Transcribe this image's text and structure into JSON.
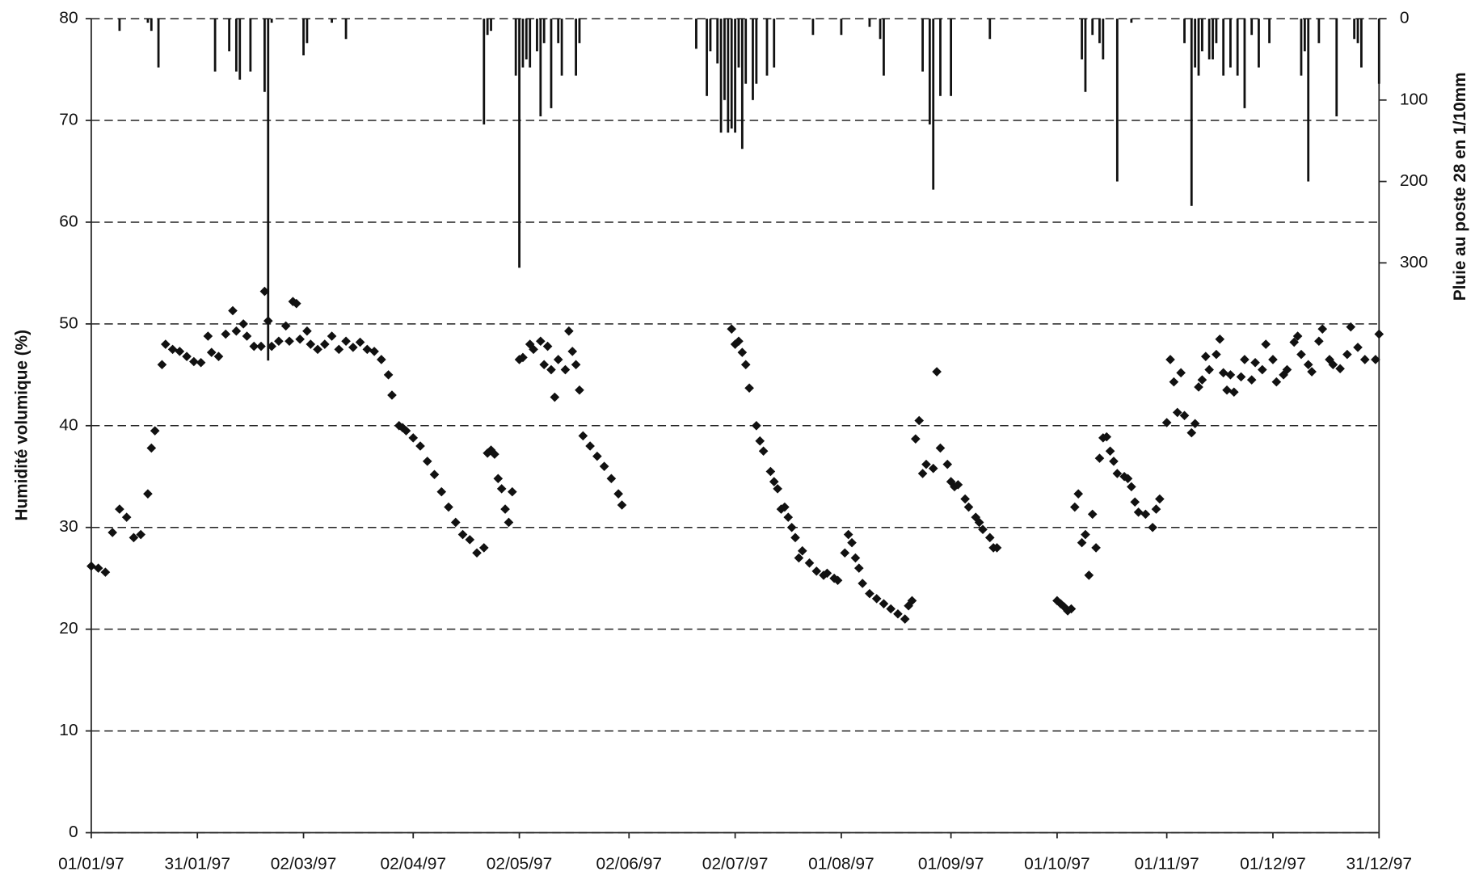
{
  "chart_data": {
    "type": "combo",
    "y_label": "Humidité volumique (%)",
    "y2_label": "Pluie au poste 28 en 1/10mm",
    "xlim": [
      "1997-01-01",
      "1997-12-31"
    ],
    "xticks": [
      {
        "value": "1997-01-01",
        "label": "01/01/97"
      },
      {
        "value": "1997-01-31",
        "label": "31/01/97"
      },
      {
        "value": "1997-03-02",
        "label": "02/03/97"
      },
      {
        "value": "1997-04-02",
        "label": "02/04/97"
      },
      {
        "value": "1997-05-02",
        "label": "02/05/97"
      },
      {
        "value": "1997-06-02",
        "label": "02/06/97"
      },
      {
        "value": "1997-07-02",
        "label": "02/07/97"
      },
      {
        "value": "1997-08-01",
        "label": "01/08/97"
      },
      {
        "value": "1997-09-01",
        "label": "01/09/97"
      },
      {
        "value": "1997-10-01",
        "label": "01/10/97"
      },
      {
        "value": "1997-11-01",
        "label": "01/11/97"
      },
      {
        "value": "1997-12-01",
        "label": "01/12/97"
      },
      {
        "value": "1997-12-31",
        "label": "31/12/97"
      }
    ],
    "ylim": [
      0,
      80
    ],
    "yticks": [
      0,
      10,
      20,
      30,
      40,
      50,
      60,
      70,
      80
    ],
    "y2lim": [
      1000,
      0
    ],
    "y2ticks": [
      0,
      100,
      200,
      300
    ],
    "grid": true,
    "series": [
      {
        "type": "scatter",
        "color": "#111111",
        "x": [
          "1997-01-01",
          "1997-01-03",
          "1997-01-05",
          "1997-01-07",
          "1997-01-09",
          "1997-01-11",
          "1997-01-13",
          "1997-01-15",
          "1997-01-17",
          "1997-01-18",
          "1997-01-19",
          "1997-01-21",
          "1997-01-22",
          "1997-01-24",
          "1997-01-26",
          "1997-01-28",
          "1997-01-30",
          "1997-02-01",
          "1997-02-03",
          "1997-02-04",
          "1997-02-06",
          "1997-02-08",
          "1997-02-10",
          "1997-02-11",
          "1997-02-13",
          "1997-02-14",
          "1997-02-16",
          "1997-02-18",
          "1997-02-19",
          "1997-02-20",
          "1997-02-21",
          "1997-02-23",
          "1997-02-25",
          "1997-02-26",
          "1997-02-27",
          "1997-02-28",
          "1997-03-01",
          "1997-03-03",
          "1997-03-04",
          "1997-03-06",
          "1997-03-08",
          "1997-03-10",
          "1997-03-12",
          "1997-03-14",
          "1997-03-16",
          "1997-03-18",
          "1997-03-20",
          "1997-03-22",
          "1997-03-24",
          "1997-03-26",
          "1997-03-27",
          "1997-03-29",
          "1997-03-30",
          "1997-03-31",
          "1997-04-02",
          "1997-04-04",
          "1997-04-06",
          "1997-04-08",
          "1997-04-10",
          "1997-04-12",
          "1997-04-14",
          "1997-04-16",
          "1997-04-18",
          "1997-04-20",
          "1997-04-22",
          "1997-04-23",
          "1997-04-24",
          "1997-04-25",
          "1997-04-26",
          "1997-04-27",
          "1997-04-28",
          "1997-04-29",
          "1997-04-30",
          "1997-05-02",
          "1997-05-03",
          "1997-05-05",
          "1997-05-06",
          "1997-05-08",
          "1997-05-09",
          "1997-05-10",
          "1997-05-11",
          "1997-05-12",
          "1997-05-13",
          "1997-05-15",
          "1997-05-16",
          "1997-05-17",
          "1997-05-18",
          "1997-05-19",
          "1997-05-20",
          "1997-05-22",
          "1997-05-24",
          "1997-05-26",
          "1997-05-28",
          "1997-05-30",
          "1997-05-31",
          "1997-07-01",
          "1997-07-02",
          "1997-07-03",
          "1997-07-04",
          "1997-07-05",
          "1997-07-06",
          "1997-07-08",
          "1997-07-09",
          "1997-07-10",
          "1997-07-12",
          "1997-07-13",
          "1997-07-14",
          "1997-07-15",
          "1997-07-16",
          "1997-07-17",
          "1997-07-18",
          "1997-07-19",
          "1997-07-20",
          "1997-07-21",
          "1997-07-23",
          "1997-07-25",
          "1997-07-27",
          "1997-07-28",
          "1997-07-30",
          "1997-07-31",
          "1997-08-02",
          "1997-08-03",
          "1997-08-04",
          "1997-08-05",
          "1997-08-06",
          "1997-08-07",
          "1997-08-09",
          "1997-08-11",
          "1997-08-13",
          "1997-08-15",
          "1997-08-17",
          "1997-08-19",
          "1997-08-20",
          "1997-08-21",
          "1997-08-22",
          "1997-08-23",
          "1997-08-24",
          "1997-08-25",
          "1997-08-27",
          "1997-08-28",
          "1997-08-29",
          "1997-08-31",
          "1997-09-01",
          "1997-09-02",
          "1997-09-03",
          "1997-09-05",
          "1997-09-06",
          "1997-09-08",
          "1997-09-09",
          "1997-09-10",
          "1997-09-12",
          "1997-09-13",
          "1997-09-14",
          "1997-10-01",
          "1997-10-02",
          "1997-10-03",
          "1997-10-04",
          "1997-10-05",
          "1997-10-06",
          "1997-10-07",
          "1997-10-08",
          "1997-10-09",
          "1997-10-10",
          "1997-10-11",
          "1997-10-12",
          "1997-10-13",
          "1997-10-14",
          "1997-10-15",
          "1997-10-16",
          "1997-10-17",
          "1997-10-18",
          "1997-10-20",
          "1997-10-21",
          "1997-10-22",
          "1997-10-23",
          "1997-10-24",
          "1997-10-26",
          "1997-10-28",
          "1997-10-29",
          "1997-10-30",
          "1997-11-01",
          "1997-11-02",
          "1997-11-03",
          "1997-11-04",
          "1997-11-05",
          "1997-11-06",
          "1997-11-08",
          "1997-11-09",
          "1997-11-10",
          "1997-11-11",
          "1997-11-12",
          "1997-11-13",
          "1997-11-15",
          "1997-11-16",
          "1997-11-17",
          "1997-11-18",
          "1997-11-19",
          "1997-11-20",
          "1997-11-22",
          "1997-11-23",
          "1997-11-25",
          "1997-11-26",
          "1997-11-28",
          "1997-11-29",
          "1997-12-01",
          "1997-12-02",
          "1997-12-04",
          "1997-12-05",
          "1997-12-07",
          "1997-12-08",
          "1997-12-09",
          "1997-12-11",
          "1997-12-12",
          "1997-12-14",
          "1997-12-15",
          "1997-12-17",
          "1997-12-18",
          "1997-12-20",
          "1997-12-22",
          "1997-12-23",
          "1997-12-25",
          "1997-12-27",
          "1997-12-30",
          "1997-12-31"
        ],
        "values": [
          26.2,
          26,
          25.6,
          29.5,
          31.8,
          31,
          29,
          29.3,
          33.3,
          37.8,
          39.5,
          46,
          48,
          47.5,
          47.3,
          46.8,
          46.3,
          46.2,
          48.8,
          47.2,
          46.8,
          49,
          51.3,
          49.3,
          50,
          48.8,
          47.8,
          47.8,
          53.2,
          50.3,
          47.8,
          48.3,
          49.8,
          48.3,
          52.2,
          52,
          48.5,
          49.3,
          48,
          47.5,
          48,
          48.8,
          47.5,
          48.3,
          47.7,
          48.2,
          47.5,
          47.3,
          46.5,
          45,
          43,
          40,
          39.8,
          39.5,
          38.8,
          38,
          36.5,
          35.2,
          33.5,
          32,
          30.5,
          29.3,
          28.8,
          27.5,
          28,
          37.3,
          37.6,
          37.2,
          34.8,
          33.8,
          31.8,
          30.5,
          33.5,
          46.5,
          46.7,
          48,
          47.5,
          48.3,
          46,
          47.8,
          45.5,
          42.8,
          46.5,
          45.5,
          49.3,
          47.3,
          46,
          43.5,
          39,
          38,
          37,
          36,
          34.8,
          33.3,
          32.2,
          49.5,
          48,
          48.3,
          47.2,
          46,
          43.7,
          40,
          38.5,
          37.5,
          35.5,
          34.5,
          33.8,
          31.8,
          32,
          31,
          30,
          29,
          27,
          27.7,
          26.5,
          25.7,
          25.3,
          25.5,
          25,
          24.8,
          27.5,
          29.3,
          28.5,
          27,
          26,
          24.5,
          23.5,
          23,
          22.5,
          22,
          21.5,
          21,
          22.3,
          22.8,
          38.7,
          40.5,
          35.3,
          36.2,
          35.8,
          45.3,
          37.8,
          36.2,
          34.5,
          34,
          34.2,
          32.8,
          32,
          31,
          30.5,
          29.8,
          29,
          28,
          28,
          22.8,
          22.5,
          22.2,
          21.8,
          22,
          32,
          33.3,
          28.5,
          29.3,
          25.3,
          31.3,
          28,
          36.8,
          38.8,
          38.9,
          37.5,
          36.5,
          35.3,
          35,
          34.8,
          34,
          32.5,
          31.5,
          31.3,
          30,
          31.8,
          32.8,
          40.3,
          46.5,
          44.3,
          41.3,
          45.2,
          41,
          39.3,
          40.2,
          43.8,
          44.5,
          46.8,
          45.5,
          47,
          48.5,
          45.2,
          43.5,
          45,
          43.3,
          44.8,
          46.5,
          44.5,
          46.2,
          45.5,
          48,
          46.5,
          44.3,
          45,
          45.5,
          48.2,
          48.8,
          47,
          46,
          45.3,
          48.3,
          49.5,
          46.5,
          46,
          45.6,
          47,
          49.7,
          47.7,
          46.5,
          46.5,
          49
        ]
      },
      {
        "type": "bar",
        "axis": "y2",
        "color": "#111111",
        "x": [
          "1997-01-09",
          "1997-01-17",
          "1997-01-18",
          "1997-01-20",
          "1997-02-05",
          "1997-02-09",
          "1997-02-11",
          "1997-02-12",
          "1997-02-15",
          "1997-02-19",
          "1997-02-20",
          "1997-02-21",
          "1997-03-02",
          "1997-03-03",
          "1997-03-10",
          "1997-03-14",
          "1997-04-22",
          "1997-04-23",
          "1997-04-24",
          "1997-05-01",
          "1997-05-02",
          "1997-05-03",
          "1997-05-04",
          "1997-05-05",
          "1997-05-07",
          "1997-05-08",
          "1997-05-09",
          "1997-05-11",
          "1997-05-13",
          "1997-05-14",
          "1997-05-18",
          "1997-05-19",
          "1997-06-21",
          "1997-06-24",
          "1997-06-25",
          "1997-06-27",
          "1997-06-28",
          "1997-06-29",
          "1997-06-30",
          "1997-07-01",
          "1997-07-02",
          "1997-07-03",
          "1997-07-04",
          "1997-07-05",
          "1997-07-07",
          "1997-07-08",
          "1997-07-11",
          "1997-07-13",
          "1997-07-24",
          "1997-08-01",
          "1997-08-09",
          "1997-08-12",
          "1997-08-13",
          "1997-08-24",
          "1997-08-26",
          "1997-08-27",
          "1997-08-29",
          "1997-09-01",
          "1997-09-12",
          "1997-10-08",
          "1997-10-09",
          "1997-10-11",
          "1997-10-13",
          "1997-10-14",
          "1997-10-18",
          "1997-10-22",
          "1997-11-06",
          "1997-11-08",
          "1997-11-09",
          "1997-11-10",
          "1997-11-11",
          "1997-11-13",
          "1997-11-14",
          "1997-11-15",
          "1997-11-17",
          "1997-11-19",
          "1997-11-21",
          "1997-11-23",
          "1997-11-25",
          "1997-11-27",
          "1997-11-30",
          "1997-12-09",
          "1997-12-10",
          "1997-12-11",
          "1997-12-14",
          "1997-12-19",
          "1997-12-24",
          "1997-12-25",
          "1997-12-26",
          "1997-12-31"
        ],
        "values": [
          15,
          5,
          15,
          60,
          65,
          40,
          65,
          75,
          65,
          90,
          420,
          5,
          45,
          30,
          5,
          25,
          130,
          20,
          15,
          70,
          306,
          60,
          50,
          60,
          40,
          120,
          30,
          110,
          30,
          70,
          70,
          30,
          37,
          95,
          40,
          55,
          140,
          100,
          140,
          135,
          140,
          60,
          160,
          80,
          100,
          80,
          70,
          60,
          20,
          20,
          10,
          25,
          70,
          65,
          130,
          210,
          95,
          95,
          25,
          50,
          90,
          20,
          30,
          50,
          200,
          5,
          30,
          230,
          60,
          70,
          40,
          50,
          50,
          30,
          70,
          60,
          70,
          110,
          20,
          60,
          30,
          70,
          40,
          200,
          30,
          120,
          25,
          30,
          60,
          80
        ]
      }
    ]
  }
}
